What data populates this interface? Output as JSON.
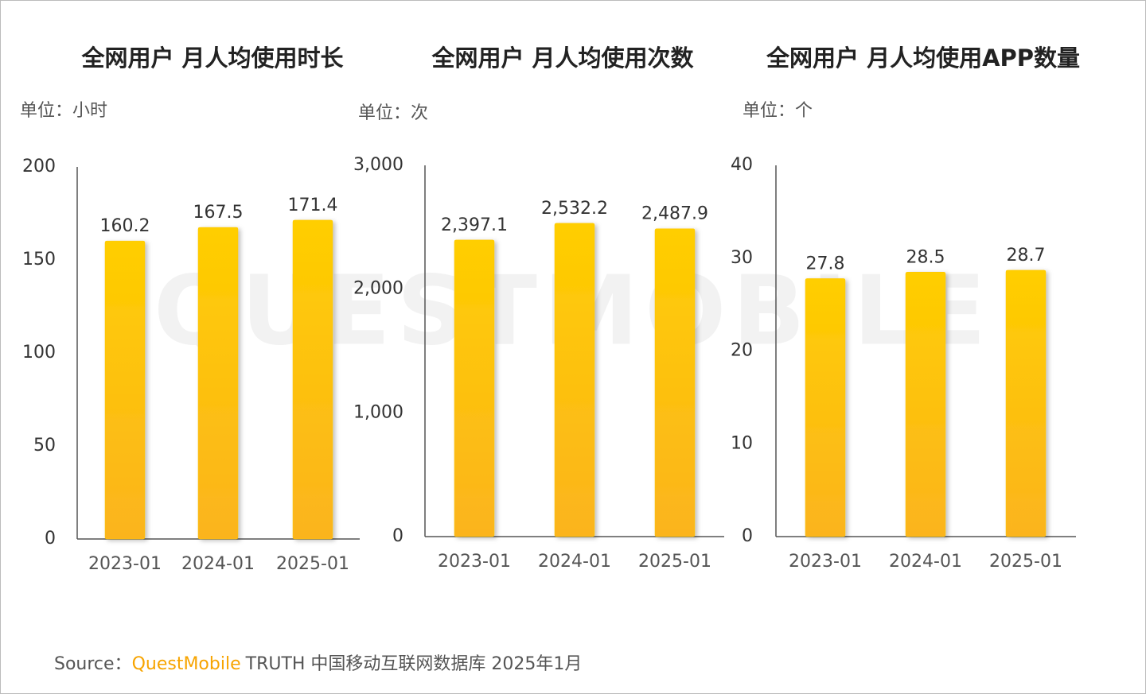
{
  "chart_data": [
    {
      "type": "bar",
      "title": "全网用户 月人均使用时长",
      "unit_label": "单位：小时",
      "categories": [
        "2023-01",
        "2024-01",
        "2025-01"
      ],
      "values": [
        160.2,
        167.5,
        171.4
      ],
      "ylim": [
        0,
        200
      ],
      "yticks": [
        0,
        50,
        100,
        150,
        200
      ],
      "grid": false,
      "color": "#ffc800"
    },
    {
      "type": "bar",
      "title": "全网用户 月人均使用次数",
      "unit_label": "单位：次",
      "categories": [
        "2023-01",
        "2024-01",
        "2025-01"
      ],
      "values": [
        2397.1,
        2532.2,
        2487.9
      ],
      "value_labels": [
        "2,397.1",
        "2,532.2",
        "2,487.9"
      ],
      "ylim": [
        0,
        3000
      ],
      "yticks": [
        0,
        {
          "value": 1000,
          "label": "1,000"
        },
        {
          "value": 2000,
          "label": "2,000"
        },
        {
          "value": 3000,
          "label": "3,000"
        }
      ],
      "grid": false,
      "color": "#ffc800"
    },
    {
      "type": "bar",
      "title": "全网用户 月人均使用APP数量",
      "unit_label": "单位：个",
      "categories": [
        "2023-01",
        "2024-01",
        "2025-01"
      ],
      "values": [
        27.8,
        28.5,
        28.7
      ],
      "ylim": [
        0,
        40
      ],
      "yticks": [
        0,
        10,
        20,
        30,
        40
      ],
      "grid": false,
      "color": "#ffc800"
    }
  ],
  "watermark": "QUESTMOBILE",
  "source": {
    "prefix": "Source：",
    "brand": "QuestMobile",
    "text": "TRUTH 中国移动互联网数据库 2025年1月"
  }
}
